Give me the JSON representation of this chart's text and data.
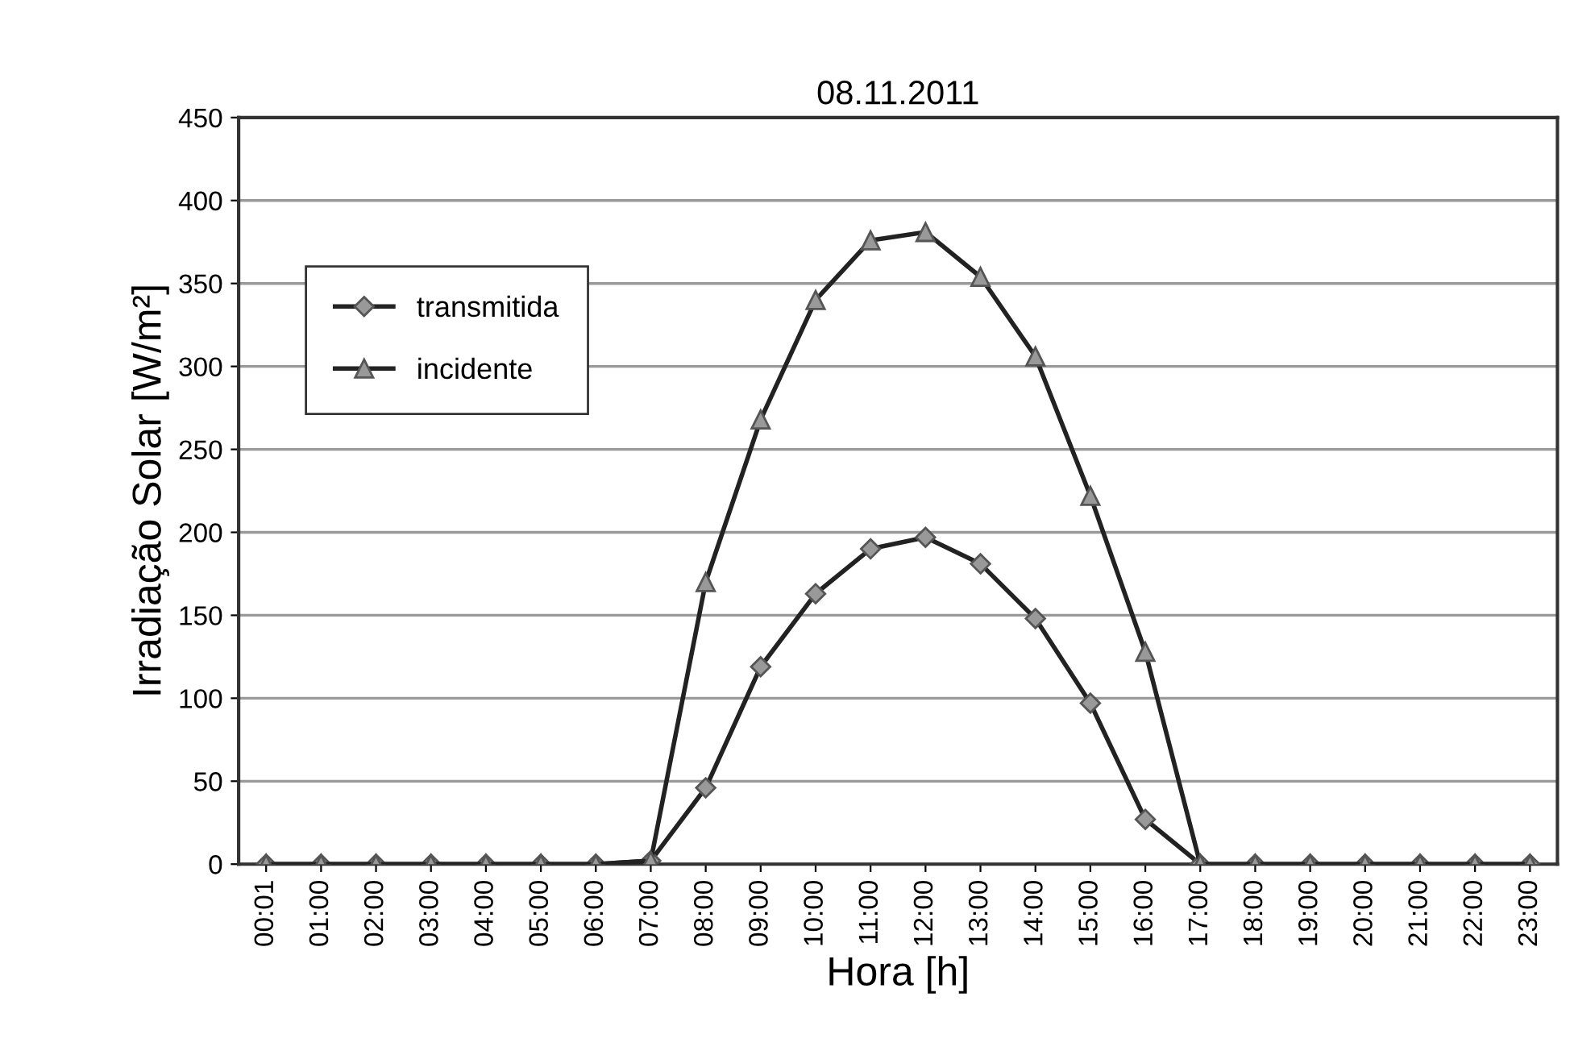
{
  "chart_data": {
    "type": "line",
    "title": "08.11.2011",
    "xlabel": "Hora [h]",
    "ylabel": "Irradiação Solar [W/m²]",
    "categories": [
      "00:01",
      "01:00",
      "02:00",
      "03:00",
      "04:00",
      "05:00",
      "06:00",
      "07:00",
      "08:00",
      "09:00",
      "10:00",
      "11:00",
      "12:00",
      "13:00",
      "14:00",
      "15:00",
      "16:00",
      "17:00",
      "18:00",
      "19:00",
      "20:00",
      "21:00",
      "22:00",
      "23:00"
    ],
    "series": [
      {
        "name": "transmitida",
        "color": "#222222",
        "marker": "diamond",
        "values": [
          0,
          0,
          0,
          0,
          0,
          0,
          0,
          2,
          46,
          119,
          163,
          190,
          197,
          181,
          148,
          97,
          27,
          0,
          0,
          0,
          0,
          0,
          0,
          0
        ]
      },
      {
        "name": "incidente",
        "color": "#222222",
        "marker": "triangle",
        "values": [
          0,
          0,
          0,
          0,
          0,
          0,
          0,
          2,
          170,
          268,
          340,
          376,
          381,
          354,
          306,
          222,
          128,
          0,
          0,
          0,
          0,
          0,
          0,
          0
        ]
      }
    ],
    "ylim": [
      0,
      450
    ],
    "yticks": [
      0,
      50,
      100,
      150,
      200,
      250,
      300,
      350,
      400,
      450
    ],
    "grid": "y",
    "legend": "top left",
    "line_style": "solid"
  }
}
